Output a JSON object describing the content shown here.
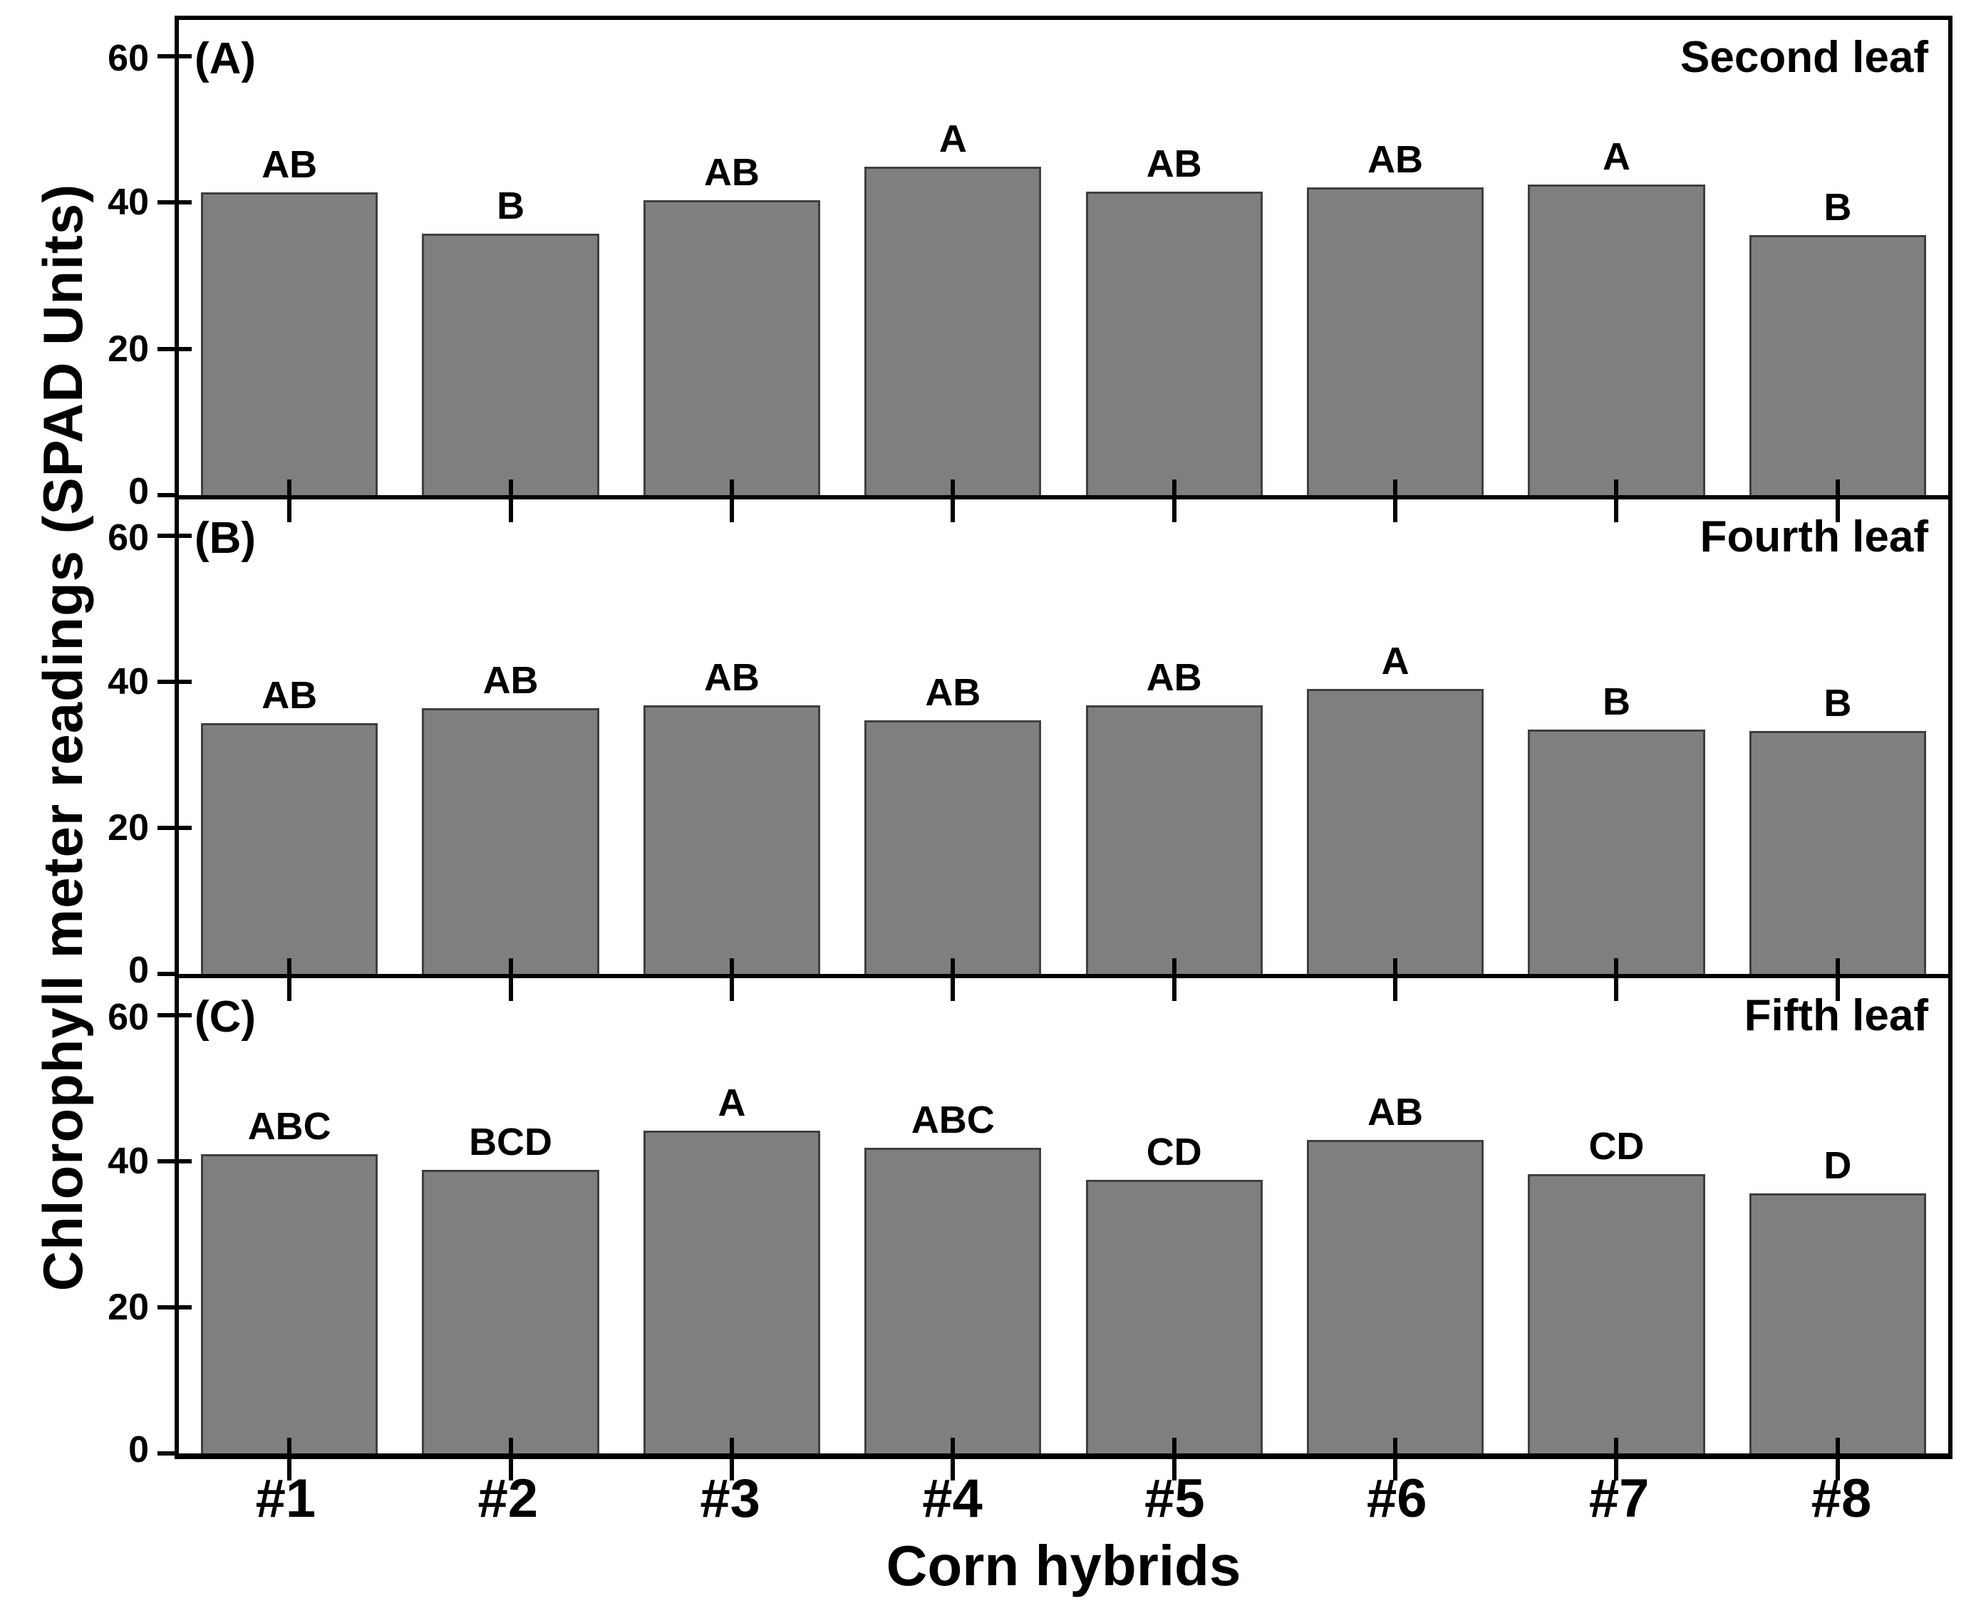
{
  "chart_data": {
    "type": "bar",
    "title": "",
    "xlabel": "Corn hybrids",
    "ylabel": "Chlorophyll meter readings (SPAD Units)",
    "categories": [
      "#1",
      "#2",
      "#3",
      "#4",
      "#5",
      "#6",
      "#7",
      "#8"
    ],
    "y_ticks": [
      0,
      20,
      40,
      60
    ],
    "ylim": [
      0,
      65
    ],
    "grid": false,
    "legend": "none",
    "bar_color": "#7f7f7f",
    "bar_edge_color": "#3f3f3f",
    "axis_color": "#000000",
    "panels": [
      {
        "id": "A",
        "label": "(A)",
        "title": "Second leaf",
        "values": [
          41.4,
          35.8,
          40.3,
          44.9,
          41.5,
          42.1,
          42.5,
          35.6
        ],
        "sig_letters": [
          "AB",
          "B",
          "AB",
          "A",
          "AB",
          "AB",
          "A",
          "B"
        ]
      },
      {
        "id": "B",
        "label": "(B)",
        "title": "Fourth leaf",
        "values": [
          34.4,
          36.4,
          36.8,
          34.7,
          36.8,
          39.0,
          33.5,
          33.3
        ],
        "sig_letters": [
          "AB",
          "AB",
          "AB",
          "AB",
          "AB",
          "A",
          "B",
          "B"
        ]
      },
      {
        "id": "C",
        "label": "(C)",
        "title": "Fifth leaf",
        "values": [
          41.0,
          38.8,
          44.2,
          41.8,
          37.4,
          42.9,
          38.2,
          35.6
        ],
        "sig_letters": [
          "ABC",
          "BCD",
          "A",
          "ABC",
          "CD",
          "AB",
          "CD",
          "D"
        ]
      }
    ]
  }
}
